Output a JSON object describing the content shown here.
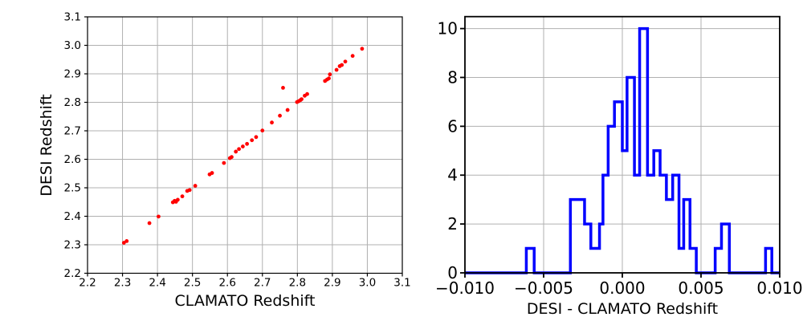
{
  "figure": {
    "background": "#ffffff",
    "grid_color": "#b0b0b0",
    "spine_color": "#000000"
  },
  "chart_data": [
    {
      "type": "scatter",
      "title": "",
      "xlabel": "CLAMATO Redshift",
      "ylabel": "DESI Redshift",
      "xlim": [
        2.2,
        3.1
      ],
      "ylim": [
        2.2,
        3.1
      ],
      "grid": true,
      "marker_color": "#ff0000",
      "xticks": [
        2.2,
        2.3,
        2.4,
        2.5,
        2.6,
        2.7,
        2.8,
        2.9,
        3.0,
        3.1
      ],
      "xtick_labels": [
        "2.2",
        "2.3",
        "2.4",
        "2.5",
        "2.6",
        "2.7",
        "2.8",
        "2.9",
        "3.0",
        "3.1"
      ],
      "yticks": [
        2.2,
        2.3,
        2.4,
        2.5,
        2.6,
        2.7,
        2.8,
        2.9,
        3.0,
        3.1
      ],
      "ytick_labels": [
        "2.2",
        "2.3",
        "2.4",
        "2.5",
        "2.6",
        "2.7",
        "2.8",
        "2.9",
        "3.0",
        "3.1"
      ],
      "points": [
        [
          2.304,
          2.307
        ],
        [
          2.312,
          2.313
        ],
        [
          2.377,
          2.376
        ],
        [
          2.403,
          2.399
        ],
        [
          2.444,
          2.449
        ],
        [
          2.449,
          2.454
        ],
        [
          2.453,
          2.451
        ],
        [
          2.458,
          2.458
        ],
        [
          2.471,
          2.47
        ],
        [
          2.485,
          2.489
        ],
        [
          2.492,
          2.492
        ],
        [
          2.508,
          2.507
        ],
        [
          2.549,
          2.547
        ],
        [
          2.556,
          2.552
        ],
        [
          2.59,
          2.587
        ],
        [
          2.607,
          2.604
        ],
        [
          2.612,
          2.608
        ],
        [
          2.624,
          2.627
        ],
        [
          2.633,
          2.636
        ],
        [
          2.644,
          2.645
        ],
        [
          2.656,
          2.654
        ],
        [
          2.67,
          2.667
        ],
        [
          2.682,
          2.678
        ],
        [
          2.7,
          2.701
        ],
        [
          2.727,
          2.729
        ],
        [
          2.75,
          2.753
        ],
        [
          2.759,
          2.851
        ],
        [
          2.772,
          2.773
        ],
        [
          2.799,
          2.801
        ],
        [
          2.804,
          2.804
        ],
        [
          2.809,
          2.808
        ],
        [
          2.812,
          2.811
        ],
        [
          2.821,
          2.823
        ],
        [
          2.828,
          2.829
        ],
        [
          2.879,
          2.875
        ],
        [
          2.885,
          2.88
        ],
        [
          2.89,
          2.884
        ],
        [
          2.893,
          2.898
        ],
        [
          2.912,
          2.914
        ],
        [
          2.921,
          2.927
        ],
        [
          2.927,
          2.931
        ],
        [
          2.937,
          2.943
        ],
        [
          2.958,
          2.963
        ],
        [
          2.985,
          2.988
        ]
      ]
    },
    {
      "type": "histogram-step",
      "title": "",
      "xlabel": "DESI - CLAMATO Redshift",
      "ylabel": "",
      "xlim": [
        -0.01,
        0.01
      ],
      "ylim": [
        0,
        10.49
      ],
      "grid": true,
      "line_color": "#0000ff",
      "xticks": [
        -0.01,
        -0.005,
        0.0,
        0.005,
        0.01
      ],
      "xtick_labels": [
        "−0.010",
        "−0.005",
        "0.000",
        "0.005",
        "0.010"
      ],
      "yticks": [
        0,
        2,
        4,
        6,
        8,
        10
      ],
      "ytick_labels": [
        "0",
        "2",
        "4",
        "6",
        "8",
        "10"
      ],
      "steps_format": "list of [x_start, count]; each count holds until next x_start, last holds to xlim max",
      "steps": [
        [
          -0.01,
          0
        ],
        [
          -0.0061,
          1
        ],
        [
          -0.0056,
          0
        ],
        [
          -0.0033,
          3
        ],
        [
          -0.0024,
          2
        ],
        [
          -0.002,
          1
        ],
        [
          -0.00145,
          2
        ],
        [
          -0.00123,
          4
        ],
        [
          -0.0009,
          6
        ],
        [
          -0.0005,
          7
        ],
        [
          0.0,
          5
        ],
        [
          0.0003,
          8
        ],
        [
          0.00077,
          4
        ],
        [
          0.0011,
          10
        ],
        [
          0.0016,
          4
        ],
        [
          0.002,
          5
        ],
        [
          0.0024,
          4
        ],
        [
          0.0028,
          3
        ],
        [
          0.0032,
          4
        ],
        [
          0.0036,
          1
        ],
        [
          0.0039,
          3
        ],
        [
          0.0043,
          1
        ],
        [
          0.0047,
          0
        ],
        [
          0.0059,
          1
        ],
        [
          0.0063,
          2
        ],
        [
          0.0068,
          0
        ],
        [
          0.0091,
          1
        ],
        [
          0.0095,
          0
        ]
      ]
    }
  ]
}
